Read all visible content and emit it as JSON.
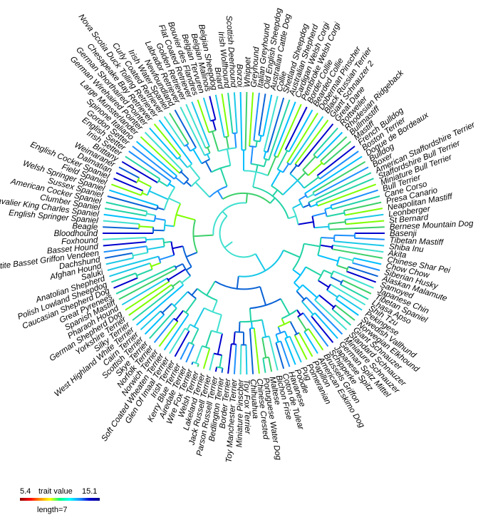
{
  "tree": {
    "tips": [
      "Basenji",
      "Tibetan Mastiff",
      "Shiba Inu",
      "Akita",
      "Chinese Shar Pei",
      "Chow Chow",
      "Siberian Husky",
      "Alaskan Malamute",
      "Samoyed",
      "Japanese Chin",
      "Tibetan Spaniel",
      "Lhasa Apso",
      "Shih Tzu",
      "Pekingese",
      "Swedish Vallhund",
      "Norwegian Elkhound",
      "Giant Schnauzer",
      "Standard Schnauzer",
      "Miniature Schnauzer",
      "German Spitz Mittel",
      "Japanese Spitz",
      "Schipperke",
      "Brussels Griffon",
      "American Eskimo Dog",
      "Papillon",
      "Pomeranian",
      "Pug",
      "Poodle",
      "Havanese",
      "Coton de Tulear",
      "Bichon Frise",
      "Maltese",
      "Portuguese Water Dog",
      "Chinese Crested",
      "Chihuahua",
      "Toy Fox Terrier",
      "Miniature Pinscher",
      "Toy Manchester Terrier",
      "Border Terrier",
      "Bedlington Terrier",
      "Parson Russell Terrier",
      "Jack Russell Terrier",
      "Lakeland Terrier",
      "Welsh Terrier",
      "Wire Fox Terrier",
      "Airedale Terrier",
      "Kerry Blue Terrier",
      "Irish Terrier",
      "Glen Of Imaal Terrier",
      "Soft Coated Wheaten Terrier",
      "Norwich Terrier",
      "Norfolk Terrier",
      "Skye Terrier",
      "Scottish Terrier",
      "Cairn Terrier",
      "West Highland White Terrier",
      "Silky Terrier",
      "Yorkshire Terrier",
      "German Shepherd Dog",
      "Pharaoh Hound",
      "Spanish Mastiff",
      "Great Pyrenees",
      "Caucasian Shepherd Dog",
      "Polish Lowland Sheepdog",
      "Anatolian Shepherd",
      "Saluki",
      "Afghan Hound",
      "Dachshund",
      "Petite Basset Griffon Vendeen",
      "Basset Hound",
      "Foxhound",
      "Bloodhound",
      "Beagle",
      "English Springer Spaniel",
      "Cavalier King Charles Spaniel",
      "Clumber Spaniel",
      "American Cocker Spaniel",
      "Sussex Spaniel",
      "Welsh Springer Spaniel",
      "Field Spaniel",
      "English Cocker Spaniel",
      "Dalmatian",
      "Weimaraner",
      "Brittany",
      "Irish Setter",
      "English Setter",
      "Gordon Setter",
      "Spinone Italiano",
      "Large Munsterlander",
      "German Wirehaired Pointer",
      "German Shorthaired Pointer",
      "Chesapeake Bay Retriever",
      "Nova Scotia Duck Tolling Retriever",
      "Curly Coated Retriever",
      "Irish Water Spaniel",
      "Newfoundland",
      "Labrador Retriever",
      "Golden Retriever",
      "Flat Coated Retriever",
      "Bouvier des Flandres",
      "Belgian Tervuren",
      "Belgian Malinois",
      "Belgian Sheepdog",
      "Briard",
      "Irish Wolfhound",
      "Scottish Deerhound",
      "Borzoi",
      "Whippet",
      "Greyhound",
      "Italian Greyhound",
      "Old English Sheepdog",
      "Australian Cattle Dog",
      "Collie",
      "Shetland Sheepdog",
      "Australian Shepherd",
      "Cardigan Welsh Corgi",
      "Pembroke Welsh Corgi",
      "Border Collie",
      "Bearded Collie",
      "Doberman Pinscher",
      "Black Russian Terrier",
      "Giant Schnauzer 2",
      "Great Dane",
      "Rottweiler",
      "Rhodesian Ridgeback",
      "Bullmastiff",
      "Mastiff",
      "French Bulldog",
      "Boston Terrier",
      "Dogue de Bordeaux",
      "Bulldog",
      "Boxer",
      "American Staffordshire Terrier",
      "Staffordshire Bull Terrier",
      "Miniature Bull Terrier",
      "Bull Terrier",
      "Cane Corso",
      "Presa Canario",
      "Neapolitan Mastiff",
      "Leonberger",
      "St Bernard",
      "Bernese Mountain Dog"
    ]
  },
  "legend": {
    "min_label": "5.4",
    "title": "trait value",
    "max_label": "15.1",
    "length_label": "length=7",
    "gradient_colors": [
      "#8b0000",
      "#ff0000",
      "#ff8c00",
      "#ffff00",
      "#00ff7f",
      "#00ffff",
      "#1e90ff",
      "#0000cd",
      "#00008b"
    ]
  }
}
